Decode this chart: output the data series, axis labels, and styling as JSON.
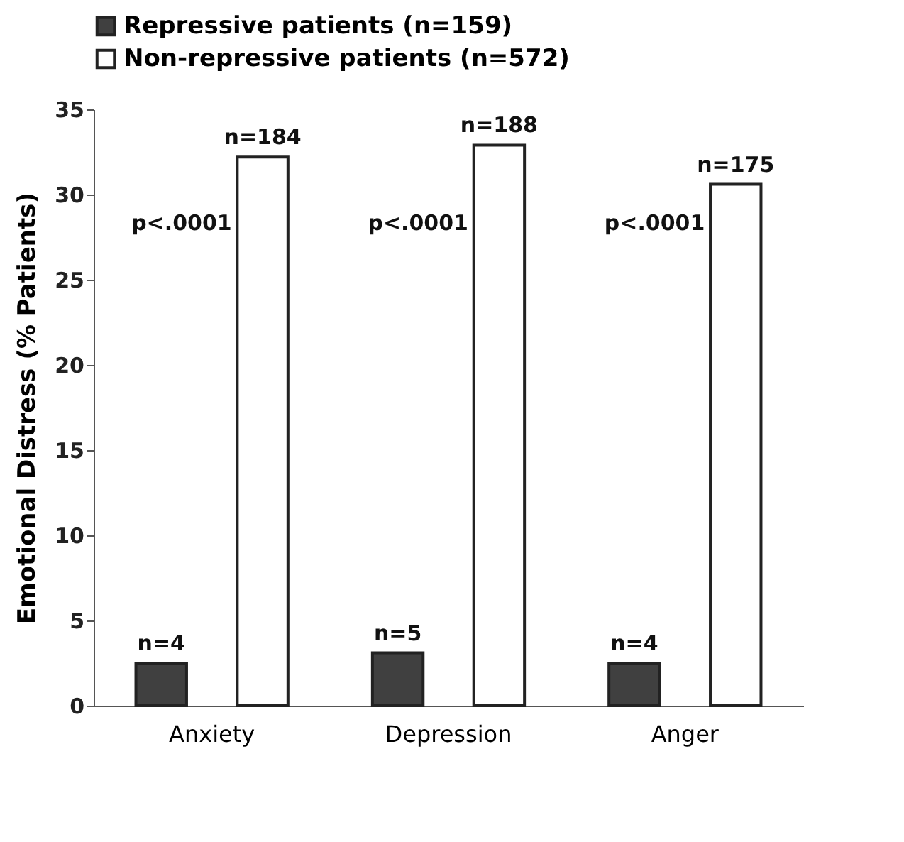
{
  "chart_data": {
    "type": "bar",
    "ylabel": "Emotional Distress (% Patients)",
    "categories": [
      "Anxiety",
      "Depression",
      "Anger"
    ],
    "series": [
      {
        "name": "Repressive patients (n=159)",
        "color": "#404040",
        "values": [
          2.5,
          3.1,
          2.5
        ]
      },
      {
        "name": "Non-repressive patients (n=572)",
        "color": "#ffffff",
        "values": [
          32.2,
          32.9,
          30.6
        ]
      }
    ],
    "ylim": [
      0,
      35
    ],
    "yticks": [
      0,
      5,
      10,
      15,
      20,
      25,
      30,
      35
    ],
    "grid": false,
    "legend": "top",
    "annotations": [
      "n=4",
      "n=184",
      "p<.0001",
      "n=5",
      "n=188",
      "p<.0001",
      "n=4",
      "n=175",
      "p<.0001"
    ]
  }
}
